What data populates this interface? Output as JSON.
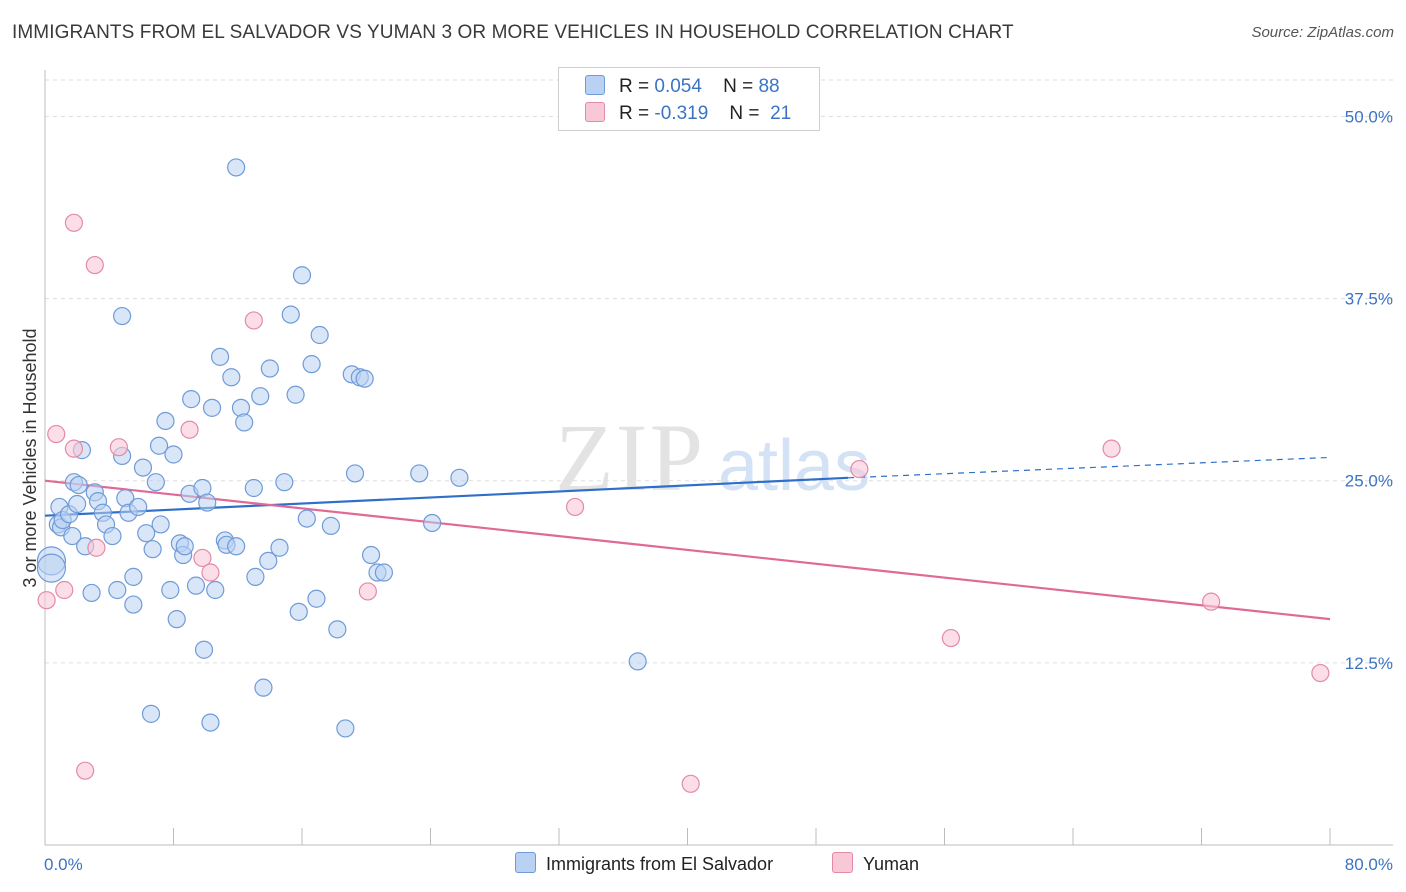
{
  "header": {
    "title": "IMMIGRANTS FROM EL SALVADOR VS YUMAN 3 OR MORE VEHICLES IN HOUSEHOLD CORRELATION CHART",
    "source": "Source: ZipAtlas.com"
  },
  "watermark": {
    "zip": "ZIP",
    "atlas": "atlas"
  },
  "stats_legend": {
    "rows": [
      {
        "r_label": "R =",
        "r_value": "0.054",
        "n_label": "N =",
        "n_value": "88",
        "color": "#a9c6f0"
      },
      {
        "r_label": "R =",
        "r_value": "-0.319",
        "n_label": "N =",
        "n_value": "21",
        "color": "#f5b8cb"
      }
    ]
  },
  "bottom_legend": {
    "items": [
      {
        "label": "Immigrants from El Salvador",
        "color": "#a9c6f0"
      },
      {
        "label": "Yuman",
        "color": "#f5b8cb"
      }
    ]
  },
  "colors": {
    "blue_fill": "#b9d1f3",
    "blue_stroke": "#6f9bd8",
    "blue_line": "#2f6fc9",
    "pink_fill": "#f8c8d7",
    "pink_stroke": "#e48aa8",
    "pink_line": "#e06a97",
    "tick_text": "#3b74c4",
    "grid": "#dddddd"
  },
  "chart_data": {
    "type": "scatter",
    "ylabel": "3 or more Vehicles in Household",
    "xlabel": "",
    "xlim": [
      0,
      80
    ],
    "ylim": [
      0,
      52.5
    ],
    "x_tick_labels": [
      "0.0%",
      "80.0%"
    ],
    "y_ticks": [
      12.5,
      25.0,
      37.5,
      50.0
    ],
    "y_tick_labels": [
      "12.5%",
      "25.0%",
      "37.5%",
      "50.0%"
    ],
    "grid": true,
    "legend_position": "top-center",
    "series": [
      {
        "name": "Immigrants from El Salvador",
        "trend": {
          "x0": 0,
          "y0": 22.6,
          "x1": 50,
          "y1": 25.2,
          "dashed_to_x": 80,
          "dashed_y1": 26.6
        },
        "points": [
          [
            0.4,
            19.5
          ],
          [
            0.4,
            19.0
          ],
          [
            0.8,
            22.0
          ],
          [
            0.9,
            23.2
          ],
          [
            1.0,
            21.8
          ],
          [
            1.1,
            22.3
          ],
          [
            1.5,
            22.7
          ],
          [
            1.7,
            21.2
          ],
          [
            1.8,
            24.9
          ],
          [
            2.0,
            23.4
          ],
          [
            2.1,
            24.7
          ],
          [
            2.3,
            27.1
          ],
          [
            2.5,
            20.5
          ],
          [
            2.9,
            17.3
          ],
          [
            3.1,
            24.2
          ],
          [
            3.3,
            23.6
          ],
          [
            3.6,
            22.8
          ],
          [
            3.8,
            22.0
          ],
          [
            4.2,
            21.2
          ],
          [
            4.5,
            17.5
          ],
          [
            4.8,
            26.7
          ],
          [
            5.0,
            23.8
          ],
          [
            5.2,
            22.8
          ],
          [
            5.5,
            18.4
          ],
          [
            5.5,
            16.5
          ],
          [
            5.8,
            23.2
          ],
          [
            6.1,
            25.9
          ],
          [
            6.3,
            21.4
          ],
          [
            6.6,
            9.0
          ],
          [
            6.7,
            20.3
          ],
          [
            6.9,
            24.9
          ],
          [
            7.1,
            27.4
          ],
          [
            7.2,
            22.0
          ],
          [
            7.5,
            29.1
          ],
          [
            7.8,
            17.5
          ],
          [
            8.0,
            26.8
          ],
          [
            8.2,
            15.5
          ],
          [
            8.4,
            20.7
          ],
          [
            8.6,
            19.9
          ],
          [
            8.7,
            20.5
          ],
          [
            9.0,
            24.1
          ],
          [
            9.1,
            30.6
          ],
          [
            9.4,
            17.8
          ],
          [
            9.8,
            24.5
          ],
          [
            9.9,
            13.4
          ],
          [
            10.1,
            23.5
          ],
          [
            10.3,
            8.4
          ],
          [
            10.4,
            30.0
          ],
          [
            10.6,
            17.5
          ],
          [
            10.9,
            33.5
          ],
          [
            11.2,
            20.9
          ],
          [
            11.3,
            20.6
          ],
          [
            11.6,
            32.1
          ],
          [
            11.9,
            20.5
          ],
          [
            12.2,
            30.0
          ],
          [
            12.4,
            29.0
          ],
          [
            13.0,
            24.5
          ],
          [
            13.1,
            18.4
          ],
          [
            13.4,
            30.8
          ],
          [
            13.6,
            10.8
          ],
          [
            13.9,
            19.5
          ],
          [
            14.0,
            32.7
          ],
          [
            14.6,
            20.4
          ],
          [
            14.9,
            24.9
          ],
          [
            15.3,
            36.4
          ],
          [
            15.6,
            30.9
          ],
          [
            15.8,
            16.0
          ],
          [
            16.0,
            39.1
          ],
          [
            16.3,
            22.4
          ],
          [
            16.6,
            33.0
          ],
          [
            16.9,
            16.9
          ],
          [
            17.1,
            35.0
          ],
          [
            17.8,
            21.9
          ],
          [
            18.2,
            14.8
          ],
          [
            18.7,
            8.0
          ],
          [
            19.1,
            32.3
          ],
          [
            19.3,
            25.5
          ],
          [
            19.6,
            32.1
          ],
          [
            19.9,
            32.0
          ],
          [
            20.3,
            19.9
          ],
          [
            20.7,
            18.7
          ],
          [
            21.1,
            18.7
          ],
          [
            23.3,
            25.5
          ],
          [
            24.1,
            22.1
          ],
          [
            25.8,
            25.2
          ],
          [
            36.9,
            12.6
          ],
          [
            11.9,
            46.5
          ],
          [
            4.8,
            36.3
          ]
        ]
      },
      {
        "name": "Yuman",
        "trend": {
          "x0": 0,
          "y0": 25.0,
          "x1": 80,
          "y1": 15.5
        },
        "points": [
          [
            0.1,
            16.8
          ],
          [
            0.7,
            28.2
          ],
          [
            1.2,
            17.5
          ],
          [
            1.8,
            27.2
          ],
          [
            1.8,
            42.7
          ],
          [
            2.5,
            5.1
          ],
          [
            3.1,
            39.8
          ],
          [
            3.2,
            20.4
          ],
          [
            4.6,
            27.3
          ],
          [
            9.0,
            28.5
          ],
          [
            9.8,
            19.7
          ],
          [
            10.3,
            18.7
          ],
          [
            13.0,
            36.0
          ],
          [
            20.1,
            17.4
          ],
          [
            33.0,
            23.2
          ],
          [
            40.2,
            4.2
          ],
          [
            50.7,
            25.8
          ],
          [
            56.4,
            14.2
          ],
          [
            66.4,
            27.2
          ],
          [
            72.6,
            16.7
          ],
          [
            79.4,
            11.8
          ]
        ]
      }
    ]
  }
}
